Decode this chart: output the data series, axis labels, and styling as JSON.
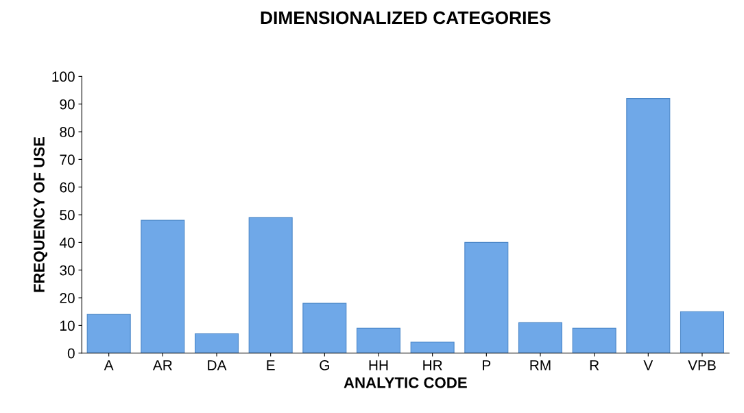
{
  "chart_data": {
    "type": "bar",
    "title": "DIMENSIONALIZED CATEGORIES",
    "xlabel": "ANALYTIC CODE",
    "ylabel": "FREQUENCY OF USE",
    "categories": [
      "A",
      "AR",
      "DA",
      "E",
      "G",
      "HH",
      "HR",
      "P",
      "RM",
      "R",
      "V",
      "VPB"
    ],
    "values": [
      14,
      48,
      7,
      49,
      18,
      9,
      4,
      40,
      11,
      9,
      92,
      15
    ],
    "color": "#6fa8e8",
    "ylim": [
      0,
      100
    ],
    "yticks": [
      0,
      10,
      20,
      30,
      40,
      50,
      60,
      70,
      80,
      90,
      100
    ],
    "grid": false,
    "legend": false
  }
}
